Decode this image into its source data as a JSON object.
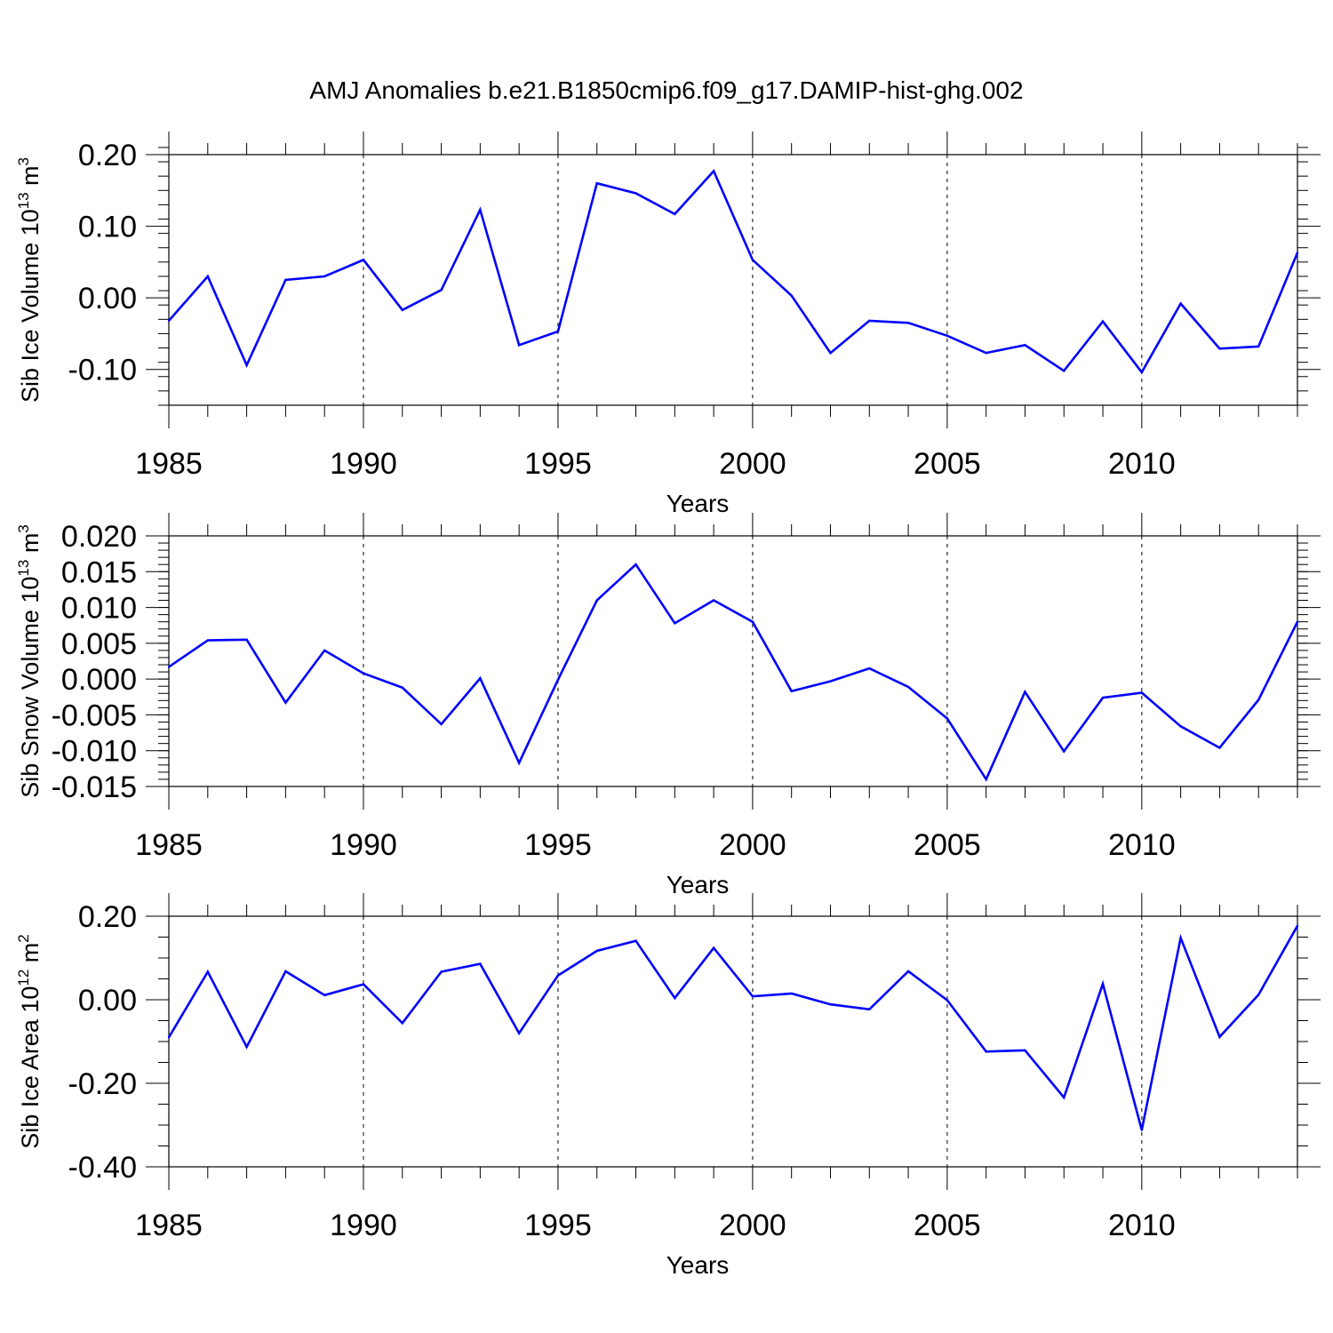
{
  "figure": {
    "title": "AMJ Anomalies b.e21.B1850cmip6.f09_g17.DAMIP-hist-ghg.002",
    "line_color": "#0000ff",
    "grid_color": "#000000"
  },
  "chart_data": [
    {
      "type": "line",
      "title": "",
      "xlabel": "Years",
      "ylabel": "Sib Ice Volume 10",
      "ylabel_exp": "13",
      "ylabel_unit": " m",
      "ylabel_unit_exp": "3",
      "xlim": [
        1985,
        2014
      ],
      "ylim": [
        -0.15,
        0.2
      ],
      "xticks": [
        1985,
        1990,
        1995,
        2000,
        2005,
        2010
      ],
      "yticks": [
        -0.1,
        0.0,
        0.1,
        0.2
      ],
      "ytick_labels": [
        "-0.10",
        "0.00",
        "0.10",
        "0.20"
      ],
      "yminor_step": 0.02,
      "vgrid": [
        1990,
        1995,
        2000,
        2005,
        2010
      ],
      "x": [
        1985,
        1986,
        1987,
        1988,
        1989,
        1990,
        1991,
        1992,
        1993,
        1994,
        1995,
        1996,
        1997,
        1998,
        1999,
        2000,
        2001,
        2002,
        2003,
        2004,
        2005,
        2006,
        2007,
        2008,
        2009,
        2010,
        2011,
        2012,
        2013,
        2014
      ],
      "series": [
        {
          "values": [
            -0.032,
            0.03,
            -0.094,
            0.025,
            0.03,
            0.053,
            -0.017,
            0.011,
            0.123,
            -0.066,
            -0.047,
            0.16,
            0.146,
            0.117,
            0.177,
            0.053,
            0.003,
            -0.077,
            -0.032,
            -0.035,
            -0.053,
            -0.077,
            -0.066,
            -0.102,
            -0.033,
            -0.104,
            -0.008,
            -0.071,
            -0.068,
            0.063
          ]
        }
      ]
    },
    {
      "type": "line",
      "title": "",
      "xlabel": "Years",
      "ylabel": "Sib Snow Volume 10",
      "ylabel_exp": "13",
      "ylabel_unit": " m",
      "ylabel_unit_exp": "3",
      "xlim": [
        1985,
        2014
      ],
      "ylim": [
        -0.015,
        0.02
      ],
      "xticks": [
        1985,
        1990,
        1995,
        2000,
        2005,
        2010
      ],
      "yticks": [
        -0.015,
        -0.01,
        -0.005,
        0.0,
        0.005,
        0.01,
        0.015,
        0.02
      ],
      "ytick_labels": [
        "-0.015",
        "-0.010",
        "-0.005",
        "0.000",
        "0.005",
        "0.010",
        "0.015",
        "0.020"
      ],
      "yminor_step": 0.001,
      "vgrid": [
        1990,
        1995,
        2000,
        2005,
        2010
      ],
      "x": [
        1985,
        1986,
        1987,
        1988,
        1989,
        1990,
        1991,
        1992,
        1993,
        1994,
        1995,
        1996,
        1997,
        1998,
        1999,
        2000,
        2001,
        2002,
        2003,
        2004,
        2005,
        2006,
        2007,
        2008,
        2009,
        2010,
        2011,
        2012,
        2013,
        2014
      ],
      "series": [
        {
          "values": [
            0.0017,
            0.0054,
            0.0055,
            -0.0033,
            0.004,
            0.0008,
            -0.0012,
            -0.0063,
            0.0001,
            -0.0117,
            -0.0001,
            0.011,
            0.016,
            0.0078,
            0.011,
            0.008,
            -0.0017,
            -0.0003,
            0.0015,
            -0.0011,
            -0.0055,
            -0.014,
            -0.0018,
            -0.0101,
            -0.0026,
            -0.0019,
            -0.0066,
            -0.0096,
            -0.0029,
            0.008
          ]
        }
      ]
    },
    {
      "type": "line",
      "title": "",
      "xlabel": "Years",
      "ylabel": "Sib Ice Area 10",
      "ylabel_exp": "12",
      "ylabel_unit": " m",
      "ylabel_unit_exp": "2",
      "xlim": [
        1985,
        2014
      ],
      "ylim": [
        -0.4,
        0.2
      ],
      "xticks": [
        1985,
        1990,
        1995,
        2000,
        2005,
        2010
      ],
      "yticks": [
        -0.4,
        -0.2,
        0.0,
        0.2
      ],
      "ytick_labels": [
        "-0.40",
        "-0.20",
        "0.00",
        "0.20"
      ],
      "yminor_step": 0.05,
      "vgrid": [
        1990,
        1995,
        2000,
        2005,
        2010
      ],
      "x": [
        1985,
        1986,
        1987,
        1988,
        1989,
        1990,
        1991,
        1992,
        1993,
        1994,
        1995,
        1996,
        1997,
        1998,
        1999,
        2000,
        2001,
        2002,
        2003,
        2004,
        2005,
        2006,
        2007,
        2008,
        2009,
        2010,
        2011,
        2012,
        2013,
        2014
      ],
      "series": [
        {
          "values": [
            -0.09,
            0.067,
            -0.113,
            0.068,
            0.011,
            0.037,
            -0.056,
            0.067,
            0.086,
            -0.08,
            0.058,
            0.117,
            0.141,
            0.004,
            0.124,
            0.008,
            0.015,
            -0.011,
            -0.023,
            0.068,
            -0.001,
            -0.124,
            -0.121,
            -0.234,
            0.038,
            -0.312,
            0.148,
            -0.089,
            0.012,
            0.177
          ]
        }
      ]
    }
  ]
}
